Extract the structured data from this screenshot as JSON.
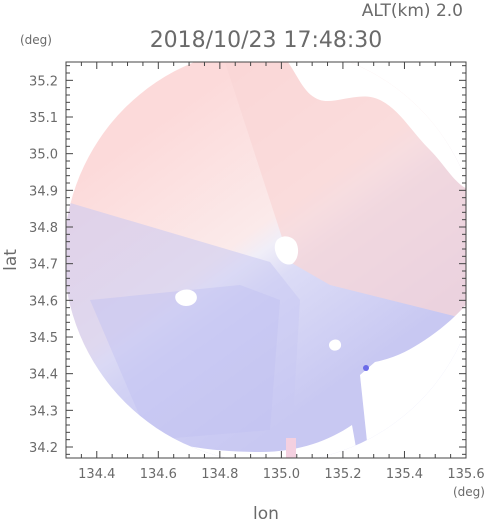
{
  "altitude_label": "ALT(km)  2.0",
  "timestamp": "2018/10/23 17:48:30",
  "y_unit": "(deg)",
  "x_unit": "(deg)",
  "x_axis_label": "lon",
  "y_axis_label": "lat",
  "colors": {
    "frame": "#444444",
    "approaching": "#c8c8f4",
    "receding": "#fbd2d2",
    "zero": "#f4f0f8"
  },
  "chart_data": {
    "type": "heatmap",
    "title": "2018/10/23 17:48:30",
    "xlabel": "lon",
    "ylabel": "lat",
    "xlim": [
      134.3,
      135.6
    ],
    "ylim": [
      34.17,
      35.25
    ],
    "x_ticks": [
      "134.4",
      "134.6",
      "134.8",
      "135.0",
      "135.2",
      "135.4",
      "135.6"
    ],
    "y_ticks": [
      "35.2",
      "35.1",
      "35.0",
      "34.9",
      "34.8",
      "34.7",
      "34.6",
      "34.5",
      "34.4",
      "34.3",
      "34.2"
    ],
    "radar_center": {
      "lon": 134.99,
      "lat": 34.68
    },
    "radar_range_deg": 0.68,
    "grid": false,
    "legend": "none"
  }
}
